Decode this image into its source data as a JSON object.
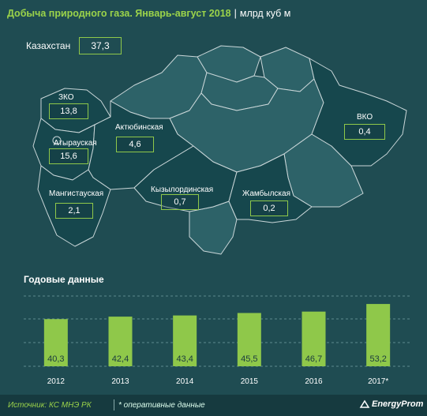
{
  "header": {
    "title": "Добыча природного газа. Январь-август 2018",
    "separator": "|",
    "unit": "млрд куб м"
  },
  "map": {
    "country": {
      "name": "Казахстан",
      "value": "37,3"
    },
    "regions": [
      {
        "key": "zko",
        "name": "ЗКО",
        "value": "13,8"
      },
      {
        "key": "atyrau",
        "name": "Атырауская",
        "value": "15,6"
      },
      {
        "key": "aktobe",
        "name": "Актюбинская",
        "value": "4,6"
      },
      {
        "key": "mangistau",
        "name": "Мангистауская",
        "value": "2,1"
      },
      {
        "key": "kyzylorda",
        "name": "Кызылординская",
        "value": "0,7"
      },
      {
        "key": "zhambyl",
        "name": "Жамбылская",
        "value": "0,2"
      },
      {
        "key": "vko",
        "name": "ВКО",
        "value": "0,4"
      }
    ],
    "colors": {
      "highlight": "#16474d",
      "land": "#2d6268",
      "border": "#c9d6d8",
      "accent": "#8fc84a"
    }
  },
  "annual": {
    "title": "Годовые данные"
  },
  "chart_data": {
    "type": "bar",
    "title": "Годовые данные",
    "categories": [
      "2012",
      "2013",
      "2014",
      "2015",
      "2016",
      "2017*"
    ],
    "values": [
      40.3,
      42.4,
      43.4,
      45.5,
      46.7,
      53.2
    ],
    "labels": [
      "40,3",
      "42,4",
      "43,4",
      "45,5",
      "46,7",
      "53,2"
    ],
    "ylim": [
      0,
      60
    ],
    "grid": true,
    "bar_color": "#8fc84a"
  },
  "footer": {
    "source": "Источник: КС МНЭ РК",
    "separator": "|",
    "note": "* оперативные данные",
    "logo": "EnergyProm"
  }
}
